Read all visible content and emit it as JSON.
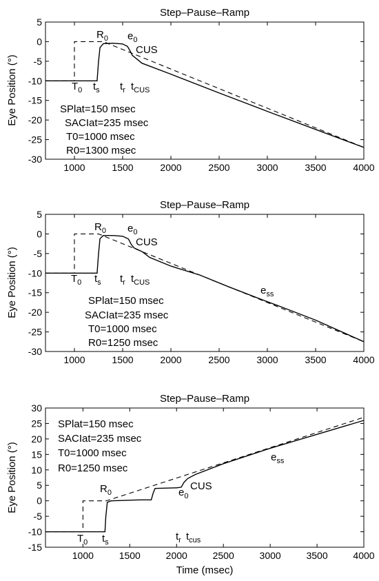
{
  "figure": {
    "xlabel": "Time (msec)",
    "ylabel": "Eye Position (°)"
  },
  "chart_data": [
    {
      "type": "line",
      "title": "Step–Pause–Ramp",
      "ylabel": "Eye Position (°)",
      "xlim": [
        700,
        4000
      ],
      "ylim": [
        -30,
        5
      ],
      "xticks": [
        1000,
        1500,
        2000,
        2500,
        3000,
        3500,
        4000
      ],
      "yticks": [
        5,
        0,
        -5,
        -10,
        -15,
        -20,
        -25,
        -30
      ],
      "params": [
        "SPlat=150 msec",
        "SACIat=235 msec",
        "T0=1000 msec",
        "R0=1300 msec"
      ],
      "labels": {
        "T0": "T",
        "T0sub": "0",
        "ts": "t",
        "tssub": "s",
        "R0": "R",
        "R0sub": "0",
        "e0": "e",
        "e0sub": "0",
        "cus": "CUS",
        "tr": "t",
        "trsub": "r",
        "tcus": "t",
        "tcussub": "CUS",
        "ess": "",
        "esssub": ""
      },
      "series": [
        {
          "style": "dashed",
          "x": [
            700,
            1000,
            1000,
            1300,
            4000
          ],
          "y": [
            -10,
            -10,
            0,
            0,
            -27
          ]
        },
        {
          "style": "solid",
          "x": [
            700,
            1235,
            1250,
            1265,
            1300,
            1400,
            1500,
            1550,
            1580,
            1600,
            1700,
            2000,
            2500,
            3000,
            3500,
            4000
          ],
          "y": [
            -10,
            -10,
            -5,
            -1.5,
            -0.5,
            -0.4,
            -0.6,
            -1.2,
            -2.5,
            -3.5,
            -5.5,
            -8.3,
            -13.1,
            -17.8,
            -22.4,
            -27
          ]
        }
      ]
    },
    {
      "type": "line",
      "title": "Step–Pause–Ramp",
      "ylabel": "Eye Position (°)",
      "xlim": [
        700,
        4000
      ],
      "ylim": [
        -30,
        5
      ],
      "xticks": [
        1000,
        1500,
        2000,
        2500,
        3000,
        3500,
        4000
      ],
      "yticks": [
        5,
        0,
        -5,
        -10,
        -15,
        -20,
        -25,
        -30
      ],
      "params": [
        "SPlat=150 msec",
        "SACIat=235 msec",
        "T0=1000 msec",
        "R0=1250 msec"
      ],
      "labels": {
        "T0": "T",
        "T0sub": "0",
        "ts": "t",
        "tssub": "s",
        "R0": "R",
        "R0sub": "0",
        "e0": "e",
        "e0sub": "0",
        "cus": "CUS",
        "tr": "t",
        "trsub": "r",
        "tcus": "t",
        "tcussub": "CUS",
        "ess": "e",
        "esssub": "ss"
      },
      "series": [
        {
          "style": "dashed",
          "x": [
            700,
            1000,
            1000,
            1250,
            4000
          ],
          "y": [
            -10,
            -10,
            0,
            0,
            -27.5
          ]
        },
        {
          "style": "solid",
          "x": [
            700,
            1235,
            1250,
            1265,
            1300,
            1400,
            1500,
            1560,
            1590,
            1620,
            1700,
            1780,
            2000,
            2300,
            2600,
            3000,
            3100,
            3500,
            4000
          ],
          "y": [
            -10,
            -10,
            -5,
            -1.2,
            -0.4,
            -0.4,
            -0.6,
            -1.3,
            -2.7,
            -3.6,
            -4.5,
            -6,
            -8.2,
            -10.5,
            -13.5,
            -17.3,
            -18.2,
            -22,
            -27.5
          ]
        }
      ]
    },
    {
      "type": "line",
      "title": "Step–Pause–Ramp",
      "ylabel": "Eye Position (°)",
      "xlabel": "Time (msec)",
      "xlim": [
        600,
        4000
      ],
      "ylim": [
        -15,
        30
      ],
      "xticks": [
        1000,
        1500,
        2000,
        2500,
        3000,
        3500,
        4000
      ],
      "yticks": [
        30,
        25,
        20,
        15,
        10,
        5,
        0,
        -5,
        -10,
        -15
      ],
      "params": [
        "SPlat=150 msec",
        "SACIat=235 msec",
        "T0=1000 msec",
        "R0=1250 msec"
      ],
      "labels": {
        "T0": "T",
        "T0sub": "0",
        "ts": "t",
        "tssub": "s",
        "R0": "R",
        "R0sub": "0",
        "e0": "e",
        "e0sub": "0",
        "cus": "CUS",
        "tr": "t",
        "trsub": "r",
        "tcus": "t",
        "tcussub": "cus",
        "ess": "e",
        "esssub": "ss"
      },
      "series": [
        {
          "style": "dashed",
          "x": [
            600,
            1000,
            1000,
            1250,
            4000
          ],
          "y": [
            -10,
            -10,
            0,
            0,
            27
          ]
        },
        {
          "style": "solid",
          "x": [
            600,
            1235,
            1245,
            1260,
            1300,
            1600,
            1730,
            1750,
            1770,
            2000,
            2050,
            2080,
            2120,
            2200,
            2500,
            3000,
            3500,
            4000
          ],
          "y": [
            -10,
            -10,
            -5,
            -0.5,
            0,
            0.3,
            0.3,
            2.5,
            4,
            4.2,
            4.4,
            6,
            7.2,
            8.5,
            12,
            17,
            21.5,
            26
          ]
        }
      ]
    }
  ]
}
